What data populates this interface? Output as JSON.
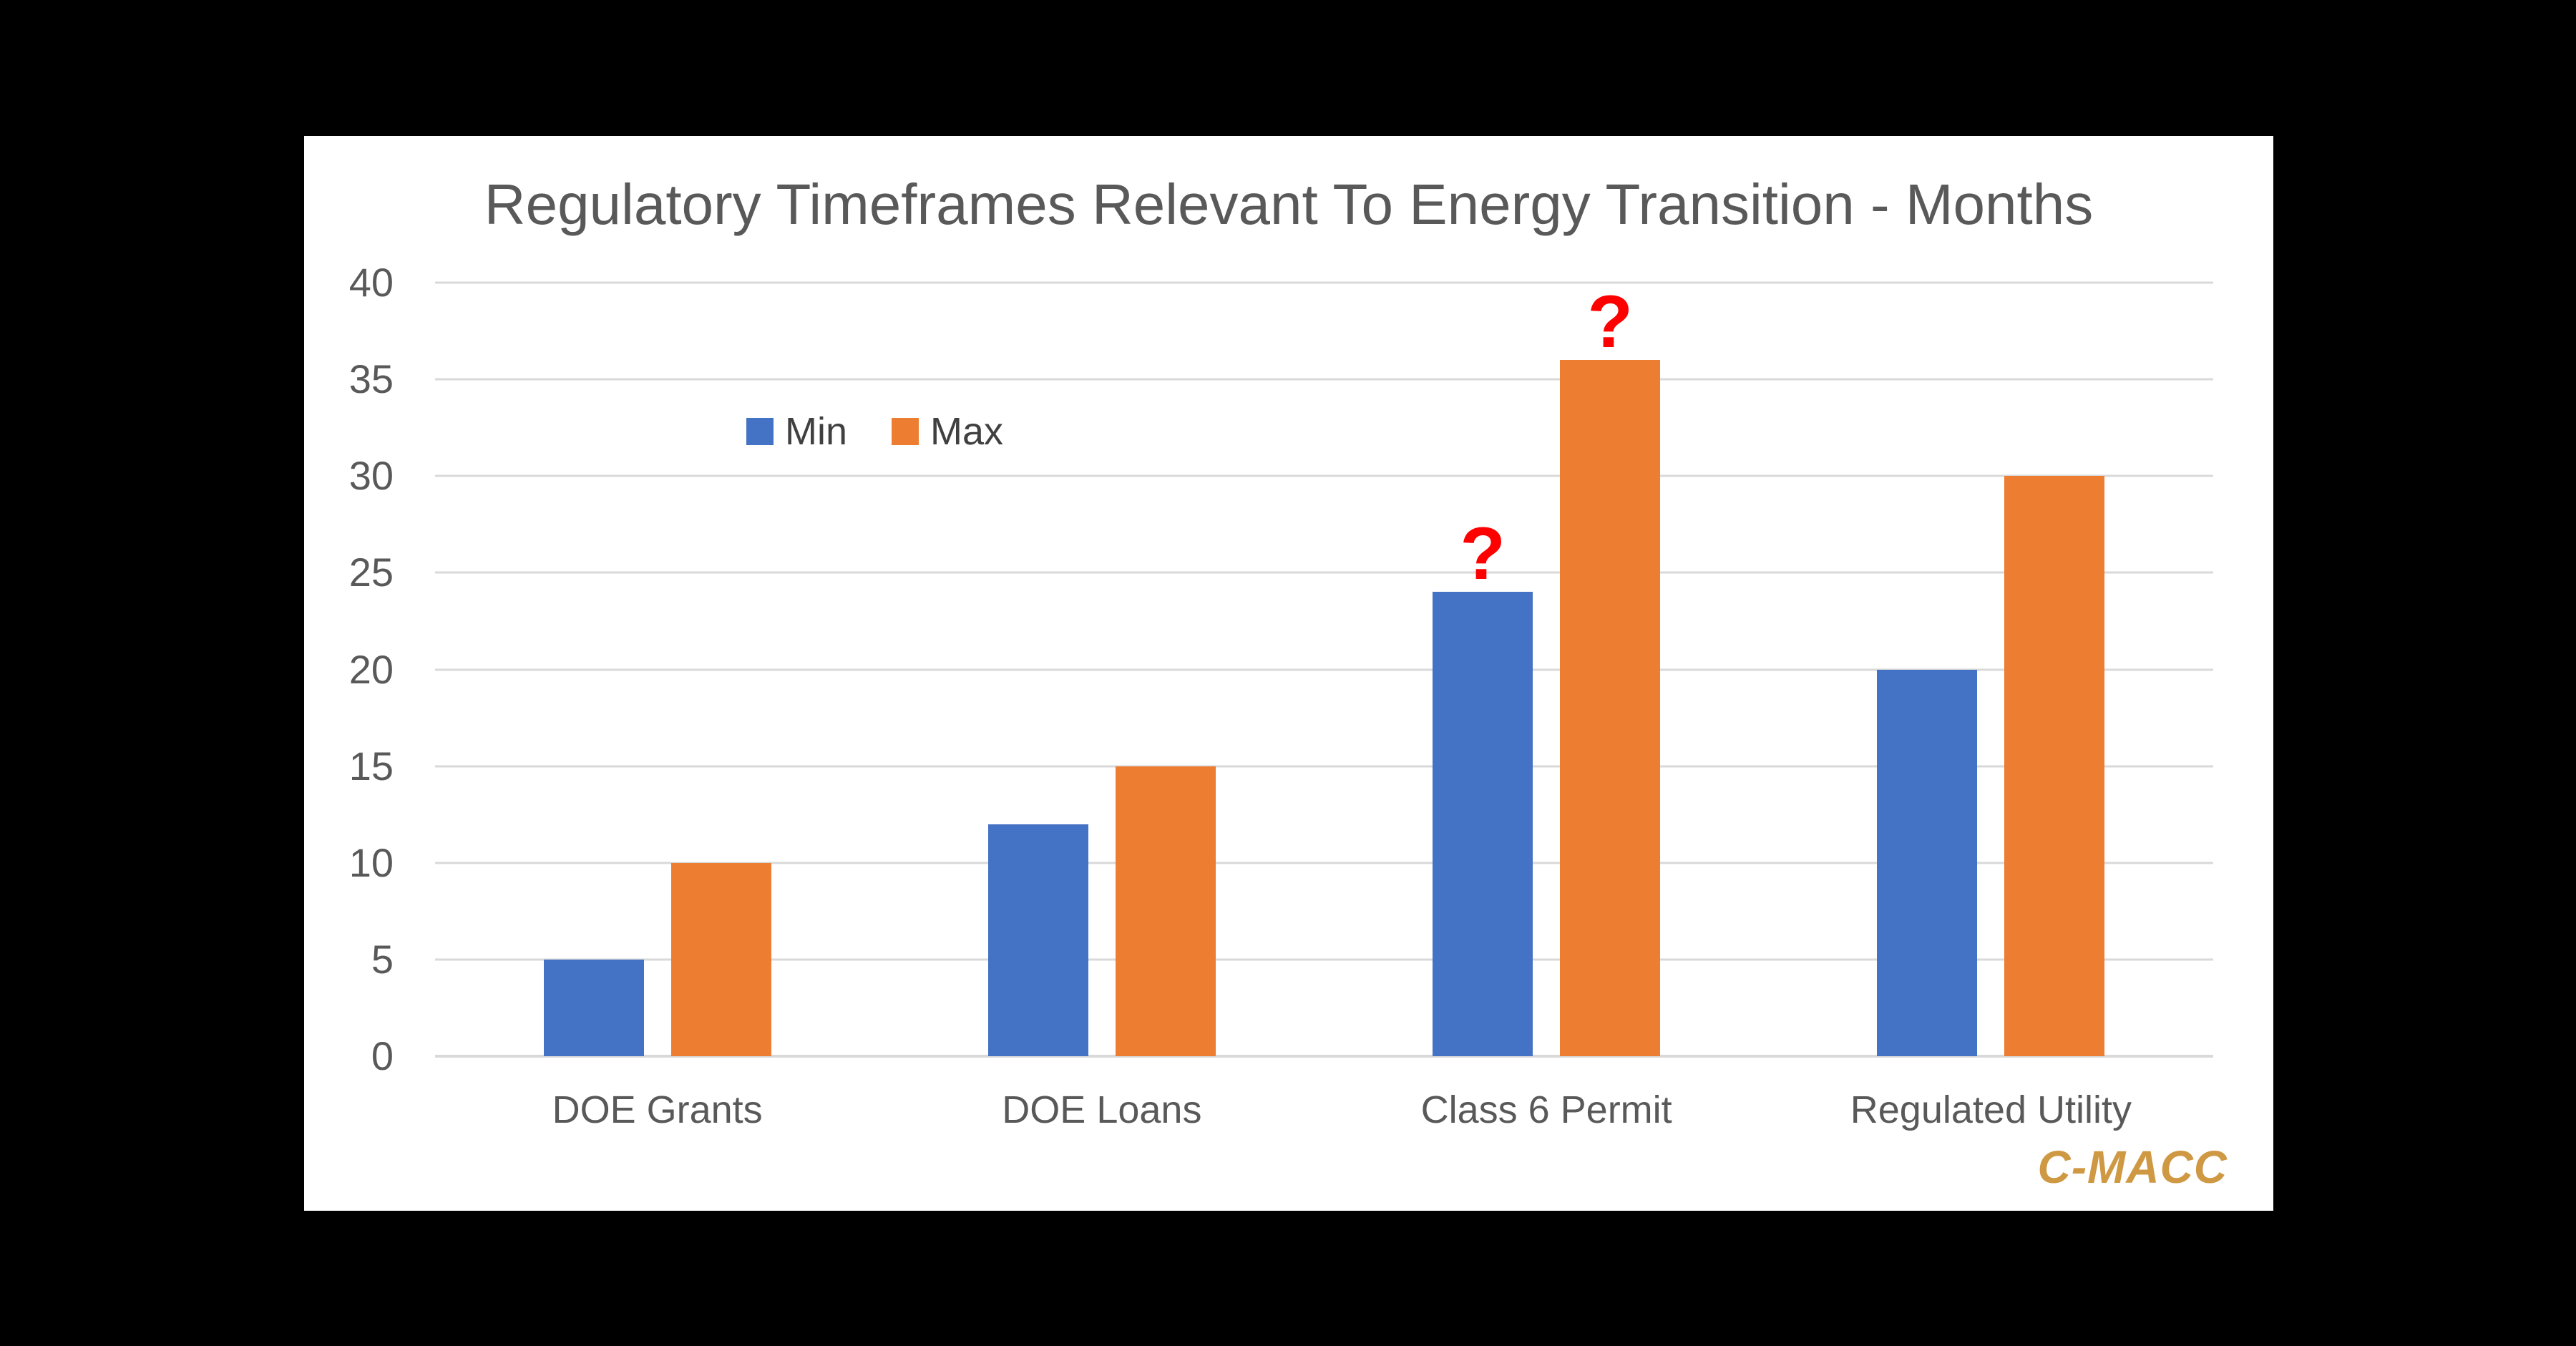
{
  "page": {
    "background": "#000000"
  },
  "panel": {
    "background": "#FFFFFF"
  },
  "chart_data": {
    "type": "bar",
    "title": "Regulatory Timeframes Relevant To Energy Transition - Months",
    "title_color": "#595959",
    "categories": [
      "DOE Grants",
      "DOE Loans",
      "Class 6 Permit",
      "Regulated Utility"
    ],
    "series": [
      {
        "name": "Min",
        "color": "#4472C4",
        "values": [
          5,
          12,
          24,
          20
        ]
      },
      {
        "name": "Max",
        "color": "#ED7D31",
        "values": [
          10,
          15,
          36,
          30
        ]
      }
    ],
    "ylabel": "",
    "xlabel": "",
    "ylim": [
      0,
      40
    ],
    "yticks": [
      0,
      5,
      10,
      15,
      20,
      25,
      30,
      35,
      40
    ],
    "grid": true,
    "gridline_color": "#D9D9D9",
    "axis_text_color": "#595959",
    "legend_position": "inside-upper-left",
    "annotations": [
      {
        "text": "?",
        "color": "#FF0000",
        "category": "Class 6 Permit",
        "series": "Min"
      },
      {
        "text": "?",
        "color": "#FF0000",
        "category": "Class 6 Permit",
        "series": "Max"
      }
    ]
  },
  "branding": {
    "logo_text": "C-MACC",
    "logo_color": "#CF9843"
  }
}
